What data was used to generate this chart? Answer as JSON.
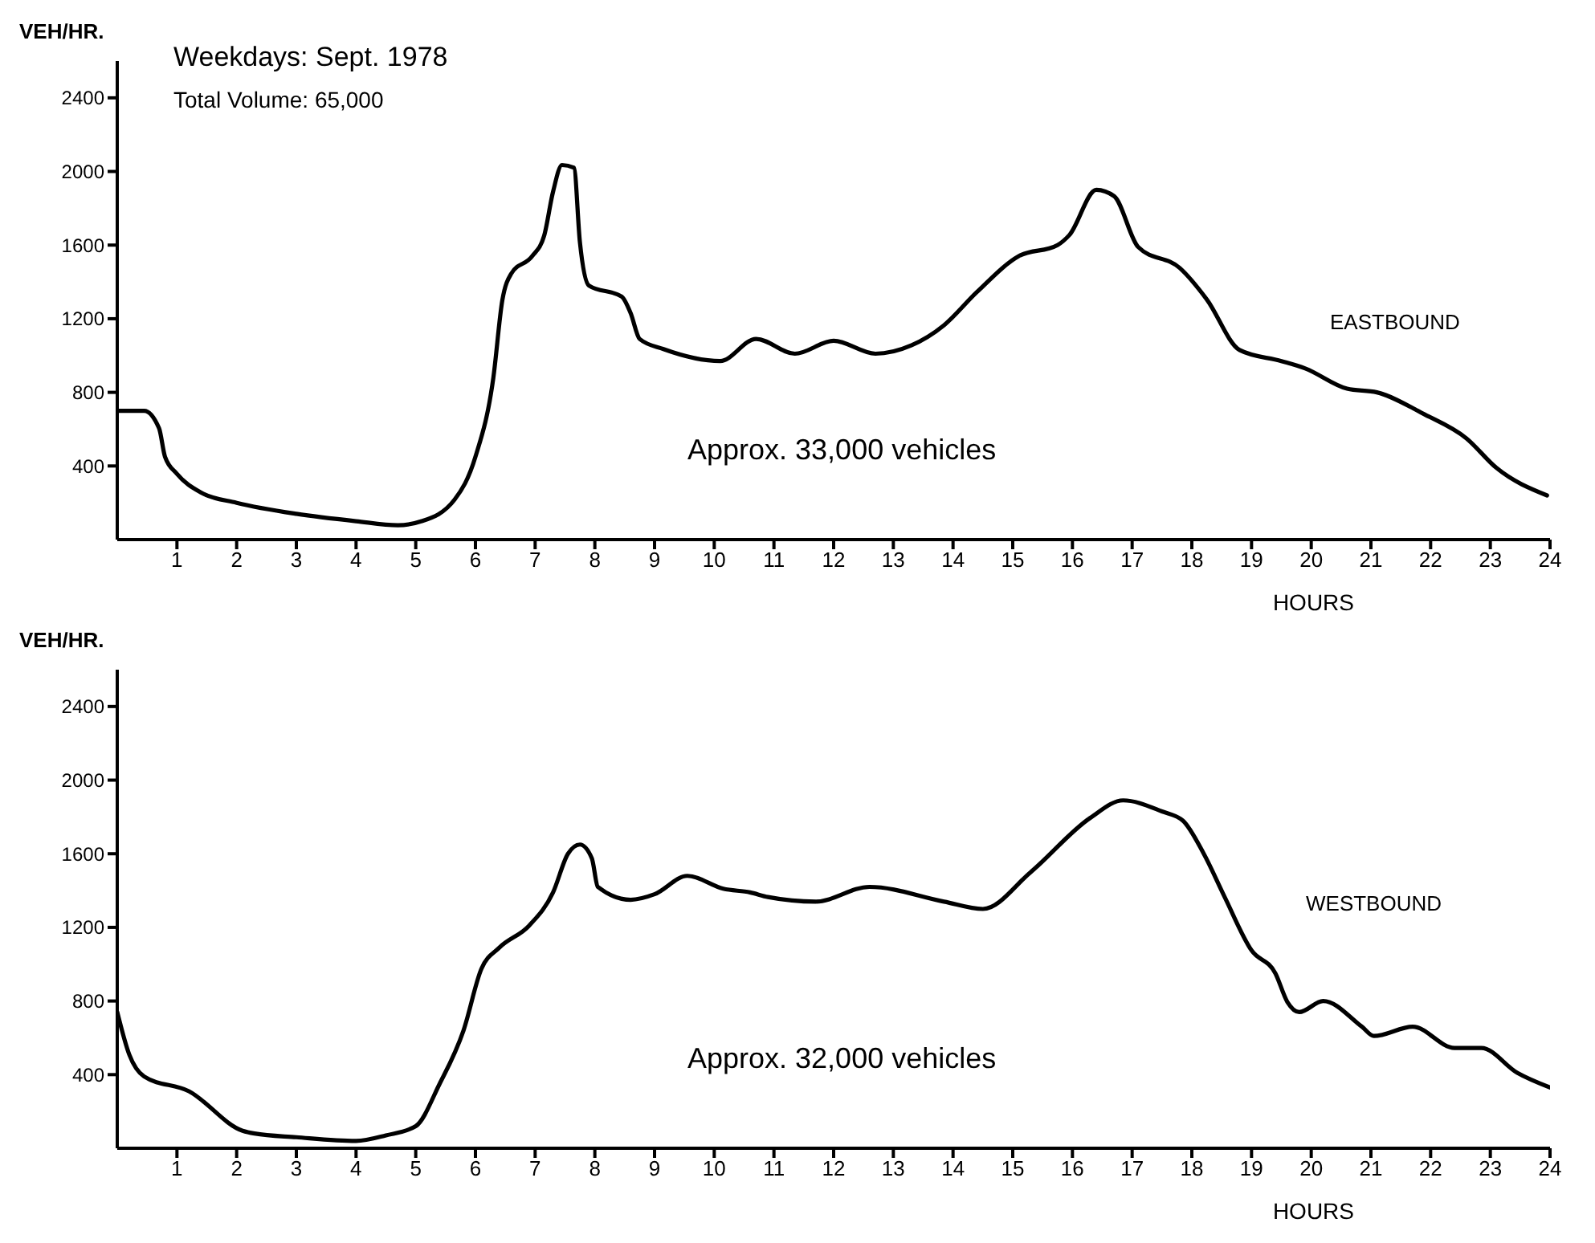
{
  "chart_data": [
    {
      "type": "line",
      "xlabel": "HOURS",
      "ylabel": "VEH/HR.",
      "annotations": [
        "Weekdays: Sept. 1978",
        "Total Volume: 65,000",
        "Approx. 33,000 vehicles"
      ],
      "xlim": [
        0,
        24
      ],
      "xticks": [
        1,
        2,
        3,
        4,
        5,
        6,
        7,
        8,
        9,
        10,
        11,
        12,
        13,
        14,
        15,
        16,
        17,
        18,
        19,
        20,
        21,
        22,
        23,
        24
      ],
      "ylim": [
        0,
        2600
      ],
      "yticks": [
        400,
        800,
        1200,
        1600,
        2000,
        2400
      ],
      "grid": false,
      "marker": "none",
      "line_style": "solid",
      "series": [
        {
          "name": "EASTBOUND",
          "color": "#000000",
          "x": [
            0,
            0.45,
            0.7,
            0.8,
            1,
            1.4,
            2,
            3,
            4,
            4.7,
            5.1,
            5.65,
            6,
            6.3,
            6.45,
            6.6,
            6.95,
            7.15,
            7.3,
            7.45,
            7.65,
            7.75,
            7.9,
            8.45,
            8.6,
            8.75,
            9.15,
            10.1,
            10.7,
            11.35,
            12,
            12.7,
            13.3,
            13.85,
            14.4,
            15.1,
            15.75,
            15.95,
            16.4,
            16.7,
            17.1,
            17.8,
            18.25,
            18.8,
            19.5,
            19.9,
            20.6,
            21.1,
            21.9,
            22.6,
            23.1,
            23.95
          ],
          "values": [
            700,
            700,
            605,
            450,
            357,
            256,
            200,
            140,
            100,
            78,
            100,
            217,
            450,
            880,
            1300,
            1445,
            1540,
            1650,
            1890,
            2035,
            2020,
            1615,
            1380,
            1320,
            1230,
            1090,
            1035,
            970,
            1090,
            1010,
            1080,
            1010,
            1055,
            1165,
            1345,
            1540,
            1600,
            1655,
            1900,
            1865,
            1590,
            1475,
            1305,
            1030,
            970,
            930,
            820,
            800,
            680,
            550,
            390,
            240
          ]
        }
      ]
    },
    {
      "type": "line",
      "xlabel": "HOURS",
      "ylabel": "VEH/HR.",
      "annotations": [
        "Approx. 32,000 vehicles"
      ],
      "xlim": [
        0,
        24
      ],
      "xticks": [
        1,
        2,
        3,
        4,
        5,
        6,
        7,
        8,
        9,
        10,
        11,
        12,
        13,
        14,
        15,
        16,
        17,
        18,
        19,
        20,
        21,
        22,
        23,
        24
      ],
      "ylim": [
        0,
        2600
      ],
      "yticks": [
        400,
        800,
        1200,
        1600,
        2000,
        2400
      ],
      "grid": false,
      "marker": "none",
      "line_style": "solid",
      "series": [
        {
          "name": "WESTBOUND",
          "color": "#000000",
          "x": [
            0,
            0.2,
            0.45,
            1.2,
            2.1,
            2.3,
            3,
            4,
            4.5,
            5,
            5.4,
            5.8,
            6.1,
            6.4,
            6.9,
            7.3,
            7.55,
            7.75,
            7.95,
            8.05,
            8.6,
            9,
            9.55,
            10.15,
            10.6,
            10.9,
            11.7,
            12.6,
            13.85,
            14.5,
            15.3,
            16.3,
            16.85,
            17.5,
            17.85,
            18.2,
            18.55,
            19,
            19.4,
            19.6,
            19.8,
            20.2,
            20.85,
            21.05,
            21.7,
            22.4,
            22.85,
            23.45,
            24
          ],
          "values": [
            740,
            510,
            390,
            310,
            95,
            80,
            60,
            40,
            70,
            120,
            350,
            640,
            975,
            1090,
            1210,
            1390,
            1600,
            1650,
            1575,
            1420,
            1350,
            1380,
            1480,
            1410,
            1390,
            1365,
            1340,
            1420,
            1340,
            1300,
            1500,
            1795,
            1890,
            1830,
            1780,
            1600,
            1365,
            1075,
            950,
            795,
            740,
            800,
            660,
            610,
            660,
            545,
            545,
            410,
            330
          ]
        }
      ]
    }
  ]
}
